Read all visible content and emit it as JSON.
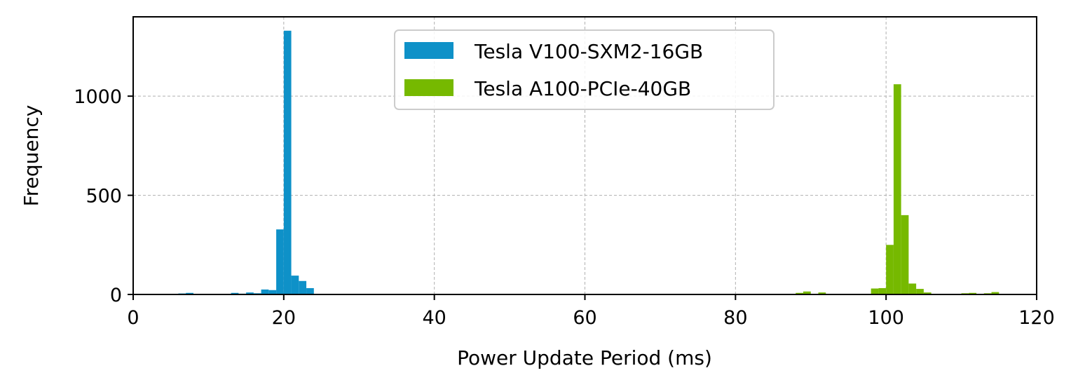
{
  "chart_data": {
    "type": "bar",
    "title": "",
    "xlabel": "Power Update Period (ms)",
    "ylabel": "Frequency",
    "xlim": [
      0,
      120
    ],
    "ylim": [
      0,
      1400
    ],
    "xticks": [
      "0",
      "20",
      "40",
      "60",
      "80",
      "100",
      "120"
    ],
    "xtick_values": [
      0,
      20,
      40,
      60,
      80,
      100,
      120
    ],
    "yticks": [
      "0",
      "500",
      "1000"
    ],
    "ytick_values": [
      0,
      500,
      1000
    ],
    "grid": true,
    "legend_position": "top-center",
    "bin_width": 1,
    "series": [
      {
        "name": "Tesla V100-SXM2-16GB",
        "color": "#0e91c8",
        "bins": [
          {
            "x": 6,
            "y": 5
          },
          {
            "x": 7,
            "y": 8
          },
          {
            "x": 13,
            "y": 8
          },
          {
            "x": 14,
            "y": 4
          },
          {
            "x": 15,
            "y": 10
          },
          {
            "x": 16,
            "y": 6
          },
          {
            "x": 17,
            "y": 25
          },
          {
            "x": 18,
            "y": 22
          },
          {
            "x": 19,
            "y": 328
          },
          {
            "x": 20,
            "y": 1330
          },
          {
            "x": 21,
            "y": 95
          },
          {
            "x": 22,
            "y": 68
          },
          {
            "x": 23,
            "y": 32
          }
        ]
      },
      {
        "name": "Tesla A100-PCIe-40GB",
        "color": "#76b900",
        "bins": [
          {
            "x": 88,
            "y": 8
          },
          {
            "x": 89,
            "y": 15
          },
          {
            "x": 91,
            "y": 10
          },
          {
            "x": 98,
            "y": 30
          },
          {
            "x": 99,
            "y": 32
          },
          {
            "x": 100,
            "y": 250
          },
          {
            "x": 101,
            "y": 1060
          },
          {
            "x": 102,
            "y": 400
          },
          {
            "x": 103,
            "y": 55
          },
          {
            "x": 104,
            "y": 28
          },
          {
            "x": 105,
            "y": 10
          },
          {
            "x": 110,
            "y": 6
          },
          {
            "x": 111,
            "y": 8
          },
          {
            "x": 113,
            "y": 6
          },
          {
            "x": 114,
            "y": 12
          }
        ]
      }
    ]
  }
}
